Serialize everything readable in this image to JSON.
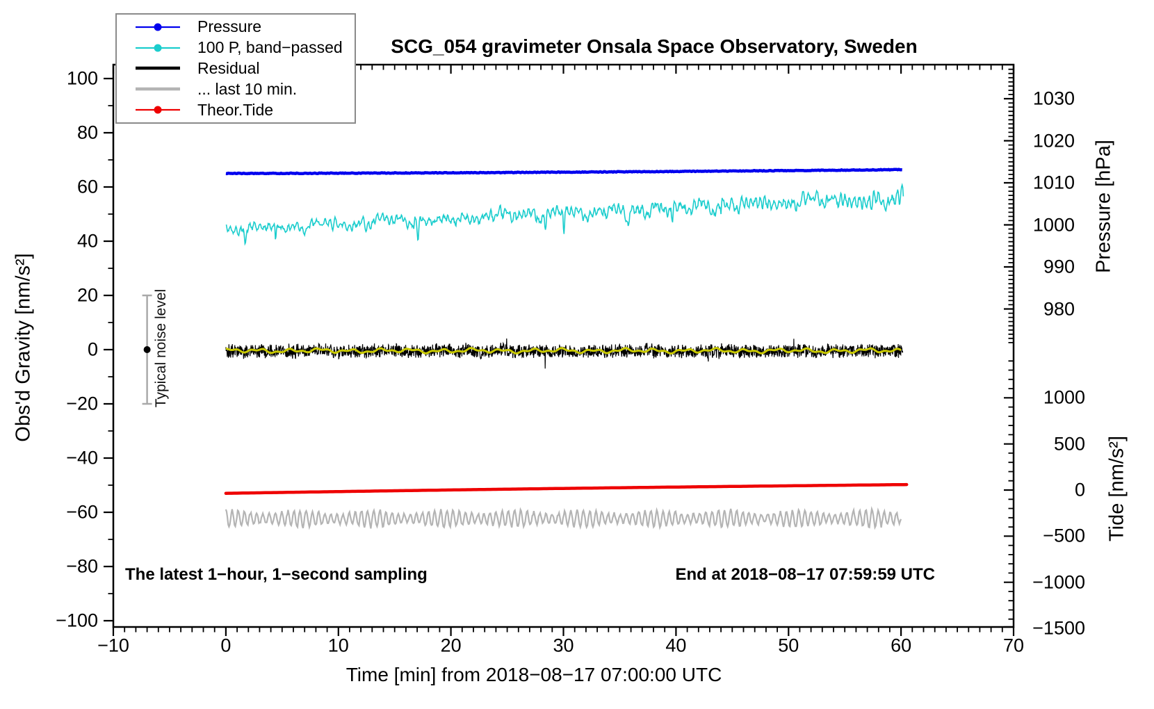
{
  "title": "SCG_054 gravimeter Onsala Space Observatory, Sweden",
  "xlabel": "Time [min] from 2018−08−17 07:00:00 UTC",
  "left_axis": {
    "label": "Obs'd Gravity [nm/s²]",
    "tick_values": [
      100,
      80,
      60,
      40,
      20,
      0,
      -20,
      -40,
      -60,
      -80,
      -100
    ],
    "tick_labels": [
      "100",
      "80",
      "60",
      "40",
      "20",
      "0",
      "−20",
      "−40",
      "−60",
      "−80",
      "−100"
    ],
    "minor_step": 10
  },
  "x_axis": {
    "tick_values": [
      -10,
      0,
      10,
      20,
      30,
      40,
      50,
      60,
      70
    ],
    "tick_labels": [
      "−10",
      "0",
      "10",
      "20",
      "30",
      "40",
      "50",
      "60",
      "70"
    ],
    "minor_step": 1
  },
  "right_pressure_axis": {
    "label": "Pressure [hPa]",
    "tick_values": [
      1030,
      1020,
      1010,
      1000,
      990,
      980
    ],
    "tick_labels": [
      "1030",
      "1020",
      "1010",
      "1000",
      "990",
      "980"
    ],
    "minor_step": 1
  },
  "right_tide_axis": {
    "label": "Tide [nm/s²]",
    "tick_values": [
      1000,
      500,
      0,
      -500,
      -1000,
      -1500
    ],
    "tick_labels": [
      "1000",
      "500",
      "0",
      "−500",
      "−1000",
      "−1500"
    ],
    "minor_step": 100
  },
  "annotations": {
    "sampling_note": "The latest 1−hour, 1−second sampling",
    "end_note": "End at 2018−08−17 07:59:59 UTC",
    "noise_bar_label": "Typical noise level"
  },
  "legend": {
    "entries": [
      {
        "label": "Pressure",
        "color": "#0000ee",
        "marker": true,
        "thick": false
      },
      {
        "label": "100 P, band−passed",
        "color": "#1bcdcd",
        "marker": true,
        "thick": false
      },
      {
        "label": "Residual",
        "color": "#000000",
        "marker": false,
        "thick": true
      },
      {
        "label": "... last 10 min.",
        "color": "#b4b4b4",
        "marker": false,
        "thick": true
      },
      {
        "label": "Theor.Tide",
        "color": "#ee0000",
        "marker": true,
        "thick": false
      }
    ]
  },
  "chart_data": {
    "type": "line",
    "title": "SCG_054 gravimeter Onsala Space Observatory, Sweden",
    "x": {
      "label": "Time [min] from 2018−08−17 07:00:00 UTC",
      "range": [
        -10,
        70
      ],
      "major_tick": 10,
      "minor_tick": 1,
      "data_span": [
        0,
        60
      ]
    },
    "y_left": {
      "label": "Obs'd Gravity [nm/s²]",
      "range": [
        -102,
        105
      ],
      "major_tick": 20,
      "minor_tick": 10
    },
    "y_right_pressure": {
      "label": "Pressure [hPa]",
      "ticks": [
        1030,
        1020,
        1010,
        1000,
        990,
        980
      ],
      "minor_tick": 1
    },
    "y_right_tide": {
      "label": "Tide [nm/s²]",
      "ticks": [
        1000,
        500,
        0,
        -500,
        -1000,
        -1500
      ],
      "minor_tick": 100
    },
    "grid": false,
    "legend_position": "top-left",
    "series": [
      {
        "name": "Pressure",
        "color": "#0000ee",
        "stroke": 4.5,
        "style": "thick slightly-noisy line, nearly flat with slow rise",
        "gravity_axis_start": 65.0,
        "gravity_axis_end": 66.4,
        "pressure_hpa_start": 1012.3,
        "pressure_hpa_end": 1013.1,
        "noise_amplitude": 0.24
      },
      {
        "name": "100 P, band−passed",
        "color": "#1bcdcd",
        "stroke": 1.6,
        "style": "high-frequency band-passed noise, rising mean, occasional deep downward spikes to ~35",
        "mean_start": 44.3,
        "mean_end": 56.0,
        "noise_amplitude": 3.2
      },
      {
        "name": "Residual",
        "color": "#000000",
        "stroke": 1.2,
        "style": "dense 1-second noise around zero",
        "mean": -0.5,
        "noise_amplitude": 2.8
      },
      {
        "name": "Residual smoothed (unlabeled yellow overlay)",
        "color": "#c9c900",
        "stroke": 3,
        "style": "smooth gentle wiggle over the residual",
        "mean": -0.4,
        "noise_amplitude": 1.0
      },
      {
        "name": "... last 10 min.",
        "color": "#b4b4b4",
        "stroke": 2.2,
        "style": "quasi-periodic oscillation, period ~0.55 min",
        "mean": -62.3,
        "noise_amplitude": 2.4
      },
      {
        "name": "Theor.Tide",
        "color": "#ee0000",
        "stroke": 4.5,
        "style": "thick smooth theoretical tide, read on right tide axis",
        "gravity_axis_start": -53.0,
        "gravity_axis_end": -49.8,
        "tide_axis_start": -40,
        "tide_axis_end": 55
      }
    ],
    "noise_bar": {
      "x_min": -7,
      "center_gravity": 0,
      "half_span_gravity": 20,
      "color": "#a9a9a9",
      "label": "Typical noise level"
    }
  }
}
